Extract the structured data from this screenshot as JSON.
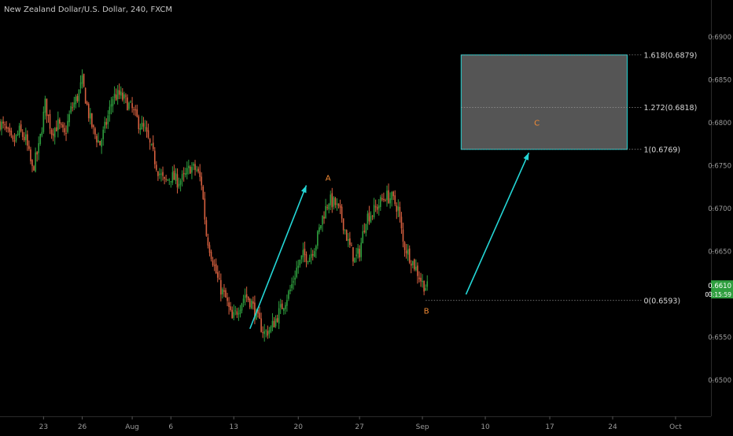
{
  "header": {
    "title": "New Zealand Dollar/U.S. Dollar, 240, FXCM"
  },
  "colors": {
    "background": "#000000",
    "up_candle": "#2e9e3e",
    "down_candle": "#d7603f",
    "arrow": "#24d6d6",
    "box_border": "#24d6d6",
    "box_fill": "#555555",
    "wave_label": "#f28b35",
    "price_badge": "#2e9e3e",
    "axis_text": "#9a9a9a"
  },
  "chart_data": {
    "type": "candlestick",
    "title": "New Zealand Dollar/U.S. Dollar, 240, FXCM",
    "xlabel": "",
    "ylabel": "",
    "ylim": [
      0.6458,
      0.6943
    ],
    "grid": false,
    "x_ticks": [
      "23",
      "26",
      "Aug",
      "6",
      "13",
      "20",
      "27",
      "Sep",
      "10",
      "17",
      "24",
      "Oct"
    ],
    "x_tick_index": [
      27,
      51,
      82,
      106,
      145,
      185,
      223,
      262,
      301,
      341,
      380,
      419
    ],
    "y_ticks": [
      0.65,
      0.655,
      0.66,
      0.665,
      0.67,
      0.675,
      0.68,
      0.685,
      0.69
    ],
    "y_tick_labels": [
      "0.6500",
      "0.6550",
      "0.6600",
      "0.6650",
      "0.6700",
      "0.6750",
      "0.6800",
      "0.6850",
      "0.6900"
    ],
    "close_path": [
      [
        0,
        0.68
      ],
      [
        4,
        0.679
      ],
      [
        8,
        0.6775
      ],
      [
        12,
        0.679
      ],
      [
        16,
        0.678
      ],
      [
        20,
        0.6745
      ],
      [
        24,
        0.677
      ],
      [
        28,
        0.6822
      ],
      [
        32,
        0.679
      ],
      [
        36,
        0.6798
      ],
      [
        40,
        0.6785
      ],
      [
        44,
        0.6815
      ],
      [
        48,
        0.683
      ],
      [
        51,
        0.6848
      ],
      [
        55,
        0.681
      ],
      [
        58,
        0.679
      ],
      [
        62,
        0.6775
      ],
      [
        66,
        0.68
      ],
      [
        70,
        0.683
      ],
      [
        74,
        0.6832
      ],
      [
        78,
        0.6825
      ],
      [
        82,
        0.6815
      ],
      [
        86,
        0.68
      ],
      [
        90,
        0.679
      ],
      [
        94,
        0.6768
      ],
      [
        98,
        0.6745
      ],
      [
        102,
        0.673
      ],
      [
        106,
        0.6738
      ],
      [
        110,
        0.6732
      ],
      [
        114,
        0.6735
      ],
      [
        118,
        0.6748
      ],
      [
        122,
        0.6745
      ],
      [
        125,
        0.673
      ],
      [
        128,
        0.667
      ],
      [
        132,
        0.664
      ],
      [
        136,
        0.661
      ],
      [
        140,
        0.6595
      ],
      [
        144,
        0.657
      ],
      [
        148,
        0.6585
      ],
      [
        152,
        0.66
      ],
      [
        156,
        0.659
      ],
      [
        160,
        0.657
      ],
      [
        164,
        0.6555
      ],
      [
        168,
        0.656
      ],
      [
        172,
        0.6575
      ],
      [
        176,
        0.659
      ],
      [
        180,
        0.6605
      ],
      [
        184,
        0.663
      ],
      [
        188,
        0.6645
      ],
      [
        192,
        0.6645
      ],
      [
        196,
        0.666
      ],
      [
        200,
        0.669
      ],
      [
        204,
        0.671
      ],
      [
        208,
        0.6705
      ],
      [
        212,
        0.669
      ],
      [
        216,
        0.666
      ],
      [
        220,
        0.664
      ],
      [
        223,
        0.665
      ],
      [
        227,
        0.669
      ],
      [
        231,
        0.6695
      ],
      [
        235,
        0.6705
      ],
      [
        239,
        0.6715
      ],
      [
        243,
        0.6712
      ],
      [
        247,
        0.67
      ],
      [
        250,
        0.666
      ],
      [
        254,
        0.6645
      ],
      [
        258,
        0.663
      ],
      [
        262,
        0.6613
      ],
      [
        265,
        0.6608
      ]
    ],
    "annotations": {
      "wave_labels": [
        {
          "text": "A",
          "x_index": 203.5,
          "y": 0.6736
        },
        {
          "text": "B",
          "x_index": 264.5,
          "y": 0.6581
        },
        {
          "text": "C",
          "x_index": 333,
          "y": 0.68
        }
      ],
      "fib_levels": [
        {
          "label": "1.618(0.6879)",
          "value": 0.6879
        },
        {
          "label": "1.272(0.6818)",
          "value": 0.6818
        },
        {
          "label": "1(0.6769)",
          "value": 0.6769
        },
        {
          "label": "0(0.6593)",
          "value": 0.6593
        }
      ],
      "target_box": {
        "x_start_index": 286,
        "x_end_index": 389,
        "y_top": 0.6879,
        "y_bottom": 0.6769
      },
      "arrows": [
        {
          "from": [
            155,
            0.656
          ],
          "to": [
            190,
            0.6727
          ]
        },
        {
          "from": [
            289,
            0.66
          ],
          "to": [
            328,
            0.6765
          ]
        }
      ]
    },
    "last_price": {
      "label": "0.6610",
      "value": 0.661,
      "countdown": "03:15:59"
    }
  }
}
